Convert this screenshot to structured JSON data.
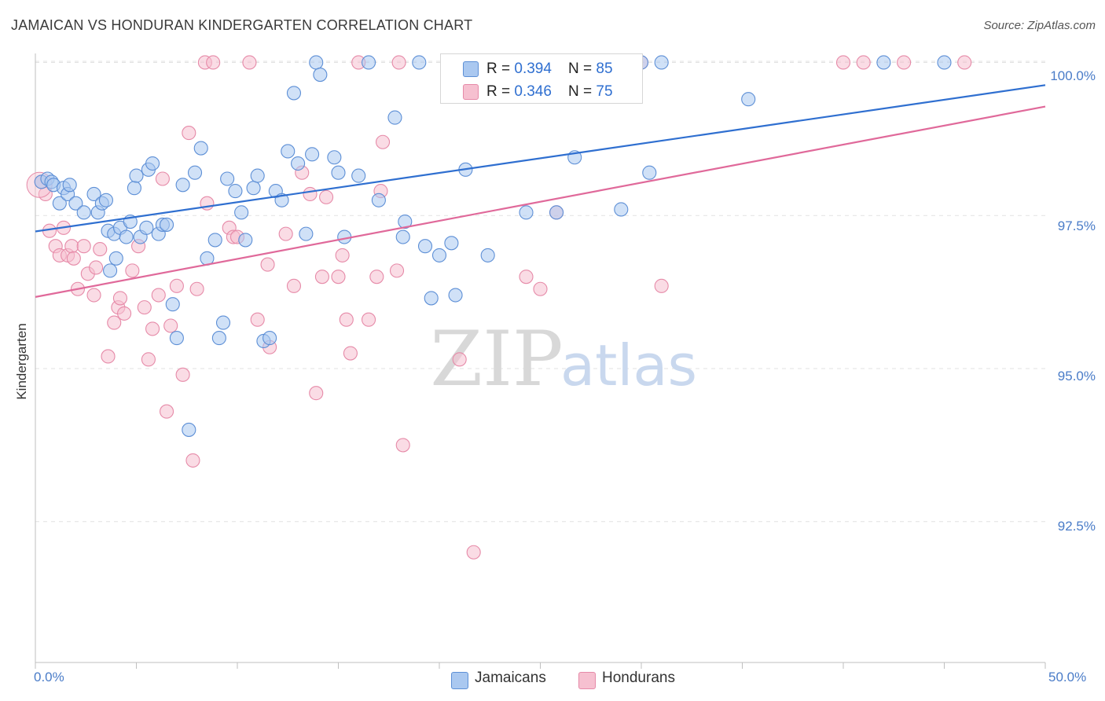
{
  "title": "JAMAICAN VS HONDURAN KINDERGARTEN CORRELATION CHART",
  "source": "Source: ZipAtlas.com",
  "watermark": {
    "zip": "ZIP",
    "atlas": "atlas"
  },
  "legend": {
    "rows": [
      {
        "r_label": "R = ",
        "r_value": "0.394",
        "n_label": "N = ",
        "n_value": "85"
      },
      {
        "r_label": "R = ",
        "r_value": "0.346",
        "n_label": "N = ",
        "n_value": "75"
      }
    ]
  },
  "colors": {
    "jamaicans_fill": "#aac8f0",
    "jamaicans_stroke": "#5d8fd6",
    "jamaicans_line": "#2f6fd0",
    "hondurans_fill": "#f6c0d0",
    "hondurans_stroke": "#e68aa8",
    "hondurans_line": "#e0699a",
    "tick_text": "#4a7cc8"
  },
  "chart_data": {
    "type": "scatter",
    "title": "JAMAICAN VS HONDURAN KINDERGARTEN CORRELATION CHART",
    "xlabel": "",
    "ylabel": "Kindergarten",
    "xlim": [
      0,
      50
    ],
    "ylim": [
      90.2,
      100.25
    ],
    "x_tick_labels": [
      "0.0%",
      "50.0%"
    ],
    "y_ticks": [
      92.5,
      95.0,
      97.5,
      100.0
    ],
    "y_tick_labels": [
      "92.5%",
      "95.0%",
      "97.5%",
      "100.0%"
    ],
    "grid": true,
    "legend_position": "top-center",
    "series": [
      {
        "name": "Jamaicans",
        "r": 0.394,
        "n": 85,
        "trend": {
          "x0": 0,
          "y0": 97.24,
          "x1": 50,
          "y1": 99.63
        },
        "points": [
          [
            0.3,
            98.05
          ],
          [
            0.6,
            98.1
          ],
          [
            0.8,
            98.05
          ],
          [
            0.9,
            98.0
          ],
          [
            1.2,
            97.7
          ],
          [
            1.4,
            97.95
          ],
          [
            1.6,
            97.85
          ],
          [
            1.7,
            98.0
          ],
          [
            2.0,
            97.7
          ],
          [
            2.4,
            97.55
          ],
          [
            2.9,
            97.85
          ],
          [
            3.1,
            97.55
          ],
          [
            3.3,
            97.7
          ],
          [
            3.5,
            97.75
          ],
          [
            3.6,
            97.25
          ],
          [
            3.7,
            96.6
          ],
          [
            3.9,
            97.2
          ],
          [
            4.0,
            96.8
          ],
          [
            4.2,
            97.3
          ],
          [
            4.5,
            97.15
          ],
          [
            4.7,
            97.4
          ],
          [
            4.9,
            97.95
          ],
          [
            5.0,
            98.15
          ],
          [
            5.2,
            97.15
          ],
          [
            5.5,
            97.3
          ],
          [
            5.6,
            98.25
          ],
          [
            5.8,
            98.35
          ],
          [
            6.1,
            97.2
          ],
          [
            6.3,
            97.35
          ],
          [
            6.5,
            97.35
          ],
          [
            6.8,
            96.05
          ],
          [
            7.0,
            95.5
          ],
          [
            7.3,
            98.0
          ],
          [
            7.6,
            94.0
          ],
          [
            7.9,
            98.2
          ],
          [
            8.2,
            98.6
          ],
          [
            8.5,
            96.8
          ],
          [
            8.9,
            97.1
          ],
          [
            9.1,
            95.5
          ],
          [
            9.3,
            95.75
          ],
          [
            9.5,
            98.1
          ],
          [
            9.9,
            97.9
          ],
          [
            10.2,
            97.55
          ],
          [
            10.4,
            97.1
          ],
          [
            10.8,
            97.95
          ],
          [
            11.0,
            98.15
          ],
          [
            11.3,
            95.45
          ],
          [
            11.6,
            95.5
          ],
          [
            11.9,
            97.9
          ],
          [
            12.2,
            97.75
          ],
          [
            12.5,
            98.55
          ],
          [
            12.8,
            99.5
          ],
          [
            13.0,
            98.35
          ],
          [
            13.4,
            97.2
          ],
          [
            13.7,
            98.5
          ],
          [
            13.9,
            100.0
          ],
          [
            14.1,
            99.8
          ],
          [
            14.8,
            98.45
          ],
          [
            15.0,
            98.2
          ],
          [
            15.3,
            97.15
          ],
          [
            16.0,
            98.15
          ],
          [
            16.5,
            100.0
          ],
          [
            17.0,
            97.75
          ],
          [
            17.8,
            99.1
          ],
          [
            18.2,
            97.15
          ],
          [
            18.3,
            97.4
          ],
          [
            19.0,
            100.0
          ],
          [
            19.3,
            97.0
          ],
          [
            19.6,
            96.15
          ],
          [
            20.0,
            96.85
          ],
          [
            20.6,
            97.05
          ],
          [
            20.8,
            96.2
          ],
          [
            21.3,
            98.25
          ],
          [
            22.4,
            96.85
          ],
          [
            24.3,
            97.55
          ],
          [
            25.8,
            97.55
          ],
          [
            26.7,
            98.45
          ],
          [
            29.0,
            97.6
          ],
          [
            29.5,
            100.0
          ],
          [
            30.0,
            100.0
          ],
          [
            30.4,
            98.2
          ],
          [
            31.0,
            100.0
          ],
          [
            35.3,
            99.4
          ],
          [
            42.0,
            100.0
          ],
          [
            45.0,
            100.0
          ]
        ]
      },
      {
        "name": "Hondurans",
        "r": 0.346,
        "n": 75,
        "trend": {
          "x0": 0,
          "y0": 96.17,
          "x1": 50,
          "y1": 99.28
        },
        "points": [
          [
            0.3,
            98.05
          ],
          [
            0.5,
            97.85
          ],
          [
            0.7,
            97.25
          ],
          [
            1.0,
            97.0
          ],
          [
            1.2,
            96.85
          ],
          [
            1.4,
            97.3
          ],
          [
            1.6,
            96.85
          ],
          [
            1.8,
            97.0
          ],
          [
            1.9,
            96.8
          ],
          [
            2.1,
            96.3
          ],
          [
            2.4,
            97.0
          ],
          [
            2.6,
            96.55
          ],
          [
            2.9,
            96.2
          ],
          [
            3.0,
            96.65
          ],
          [
            3.2,
            96.95
          ],
          [
            3.6,
            95.2
          ],
          [
            3.9,
            95.75
          ],
          [
            4.1,
            96.0
          ],
          [
            4.2,
            96.15
          ],
          [
            4.4,
            95.9
          ],
          [
            4.8,
            96.6
          ],
          [
            5.1,
            97.0
          ],
          [
            5.4,
            96.0
          ],
          [
            5.6,
            95.15
          ],
          [
            5.8,
            95.65
          ],
          [
            6.1,
            96.2
          ],
          [
            6.3,
            98.1
          ],
          [
            6.5,
            94.3
          ],
          [
            6.7,
            95.7
          ],
          [
            7.0,
            96.35
          ],
          [
            7.3,
            94.9
          ],
          [
            7.6,
            98.85
          ],
          [
            7.8,
            93.5
          ],
          [
            8.0,
            96.3
          ],
          [
            8.4,
            100.0
          ],
          [
            8.5,
            97.7
          ],
          [
            8.8,
            100.0
          ],
          [
            9.6,
            97.3
          ],
          [
            9.8,
            97.15
          ],
          [
            10.0,
            97.15
          ],
          [
            10.6,
            100.0
          ],
          [
            11.0,
            95.8
          ],
          [
            11.5,
            96.7
          ],
          [
            11.6,
            95.35
          ],
          [
            12.4,
            97.2
          ],
          [
            12.8,
            96.35
          ],
          [
            13.2,
            98.2
          ],
          [
            13.6,
            97.85
          ],
          [
            13.9,
            94.6
          ],
          [
            14.2,
            96.5
          ],
          [
            14.4,
            97.8
          ],
          [
            15.0,
            96.5
          ],
          [
            15.2,
            96.85
          ],
          [
            15.4,
            95.8
          ],
          [
            15.6,
            95.25
          ],
          [
            16.0,
            100.0
          ],
          [
            16.5,
            95.8
          ],
          [
            16.9,
            96.5
          ],
          [
            17.1,
            97.9
          ],
          [
            17.2,
            98.7
          ],
          [
            17.9,
            96.6
          ],
          [
            18.0,
            100.0
          ],
          [
            18.2,
            93.75
          ],
          [
            21.0,
            95.15
          ],
          [
            21.7,
            92.0
          ],
          [
            24.0,
            100.0
          ],
          [
            24.3,
            96.5
          ],
          [
            25.0,
            96.3
          ],
          [
            25.8,
            97.55
          ],
          [
            30.0,
            100.0
          ],
          [
            31.0,
            96.35
          ],
          [
            40.0,
            100.0
          ],
          [
            41.0,
            100.0
          ],
          [
            43.0,
            100.0
          ],
          [
            46.0,
            100.0
          ]
        ]
      }
    ]
  },
  "bottom_legend": [
    {
      "label": "Jamaicans"
    },
    {
      "label": "Hondurans"
    }
  ]
}
